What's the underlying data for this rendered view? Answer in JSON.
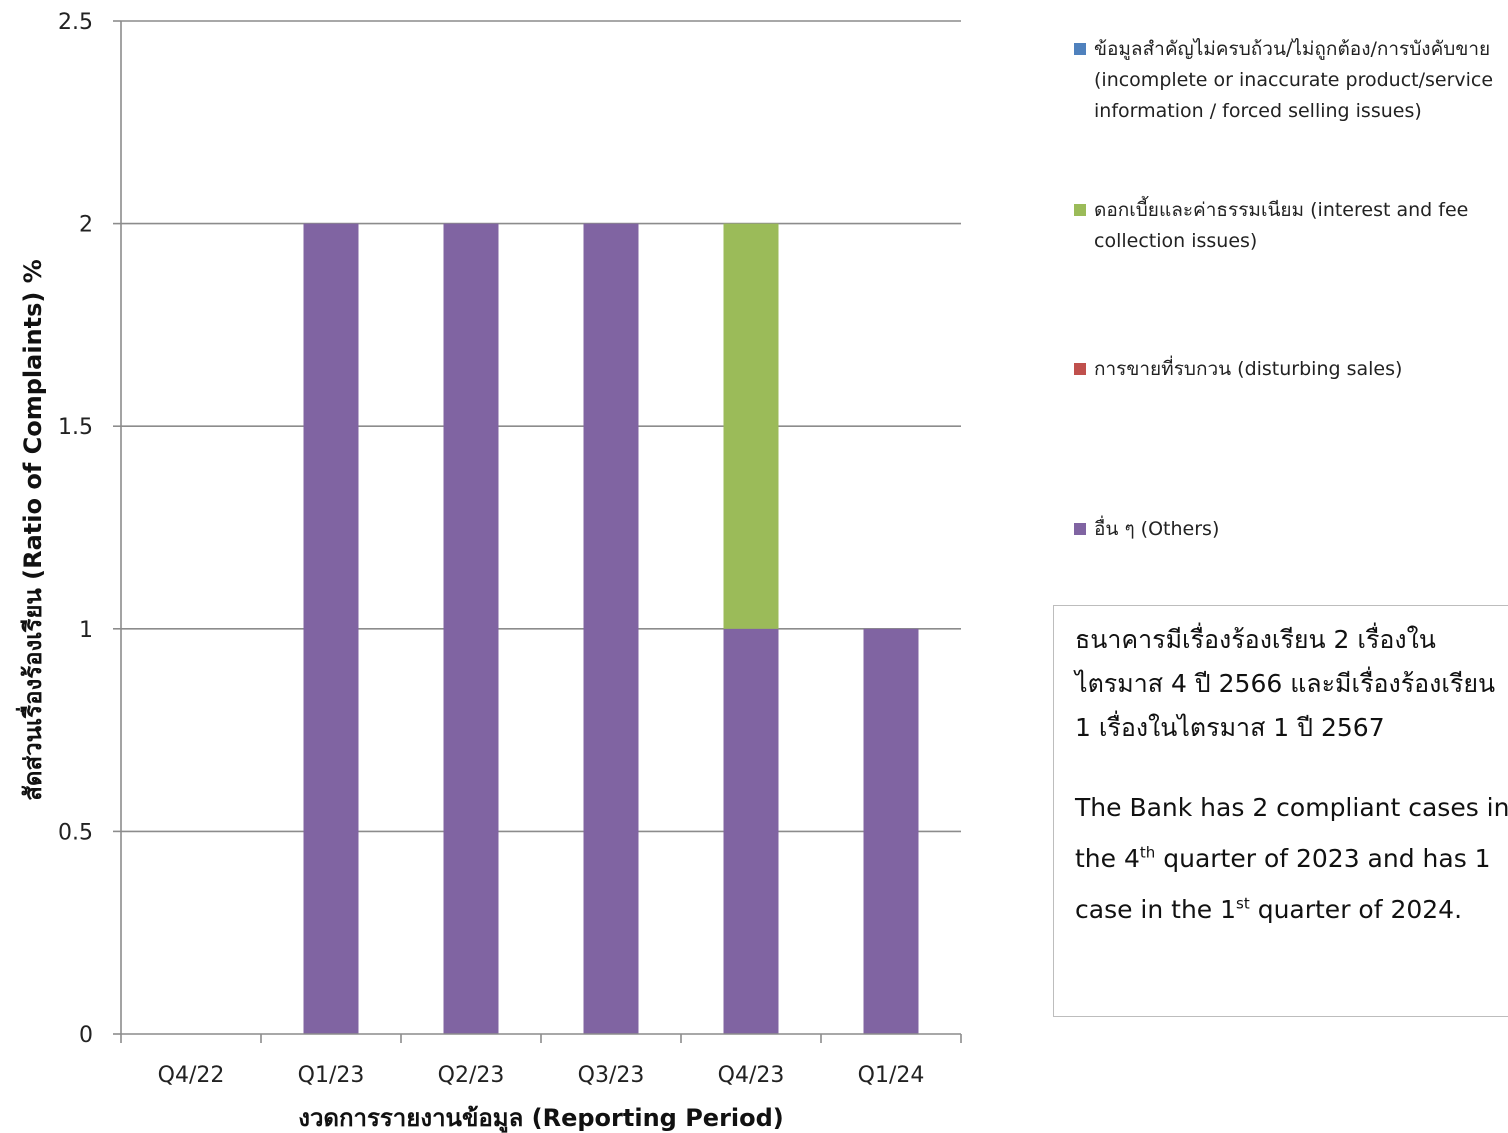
{
  "chart_data": {
    "type": "bar",
    "stacked": true,
    "categories": [
      "Q4/22",
      "Q1/23",
      "Q2/23",
      "Q3/23",
      "Q4/23",
      "Q1/24"
    ],
    "ylim": [
      0,
      2.5
    ],
    "yticks": [
      "0",
      "0.5",
      "1",
      "1.5",
      "2",
      "2.5"
    ],
    "ytick_values": [
      0,
      0.5,
      1,
      1.5,
      2,
      2.5
    ],
    "grid": true,
    "legend_position": "right",
    "xlabel": "งวดการรายงานข้อมูล (Reporting Period)",
    "ylabel": "สัดส่วนเรื่องร้องเรียน (Ratio of Complaints) %",
    "series": [
      {
        "name": "ข้อมูลสำคัญไม่ครบถ้วน/ไม่ถูกต้อง/การบังคับขาย (incomplete or inaccurate product/service information / forced selling issues)",
        "color": "#4f81bd",
        "values": [
          0,
          0,
          0,
          0,
          0,
          0
        ]
      },
      {
        "name": "ดอกเบี้ยและค่าธรรมเนียม (interest and fee collection issues)",
        "color": "#9bbb59",
        "values": [
          0,
          0,
          0,
          0,
          1,
          0
        ]
      },
      {
        "name": "การขายที่รบกวน (disturbing sales)",
        "color": "#c0504d",
        "values": [
          0,
          0,
          0,
          0,
          0,
          0
        ]
      },
      {
        "name": "อื่น ๆ (Others)",
        "color": "#8064a2",
        "values": [
          0,
          2,
          2,
          2,
          1,
          1
        ]
      }
    ]
  },
  "note": {
    "thai": "ธนาคารมีเรื่องร้องเรียน 2 เรื่องในไตรมาส 4 ปี 2566 และมีเรื่องร้องเรียน 1 เรื่องในไตรมาส 1 ปี 2567",
    "en_part1": "The Bank has 2 compliant cases in the 4",
    "en_sup1": "th",
    "en_part2": " quarter of 2023 and has 1 case in the 1",
    "en_sup2": "st",
    "en_part3": " quarter of 2024."
  }
}
